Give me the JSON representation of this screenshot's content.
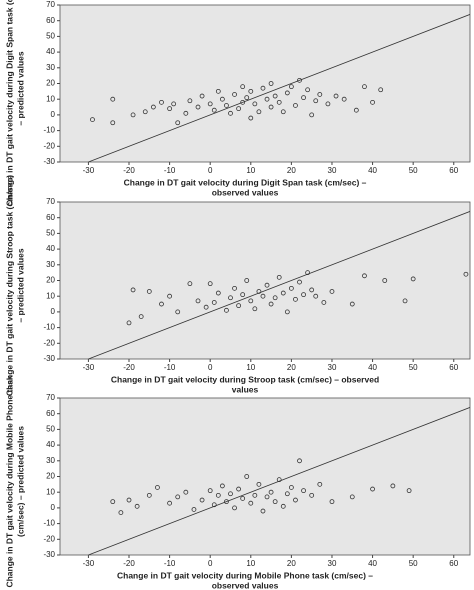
{
  "chart_data": [
    {
      "type": "scatter",
      "xlabel": [
        "Change in DT gait velocity during Digit Span task (cm/sec) –",
        "observed values"
      ],
      "ylabel": [
        "Change in DT gait velocity during Digit Span task (cm/sec)",
        "– predicted values"
      ],
      "xlim": [
        -37,
        64
      ],
      "ylim": [
        -30,
        70
      ],
      "xticks": [
        -30,
        -20,
        -10,
        0,
        10,
        20,
        30,
        40,
        50,
        60
      ],
      "yticks": [
        -30,
        -20,
        -10,
        0,
        10,
        20,
        30,
        40,
        50,
        60,
        70
      ],
      "reference_line": {
        "x": [
          -30,
          64
        ],
        "y": [
          -30,
          64
        ]
      },
      "x": [
        -29,
        -24,
        -24,
        -19,
        -16,
        -14,
        -12,
        -10,
        -9,
        -8,
        -6,
        -5,
        -3,
        -2,
        0,
        1,
        2,
        3,
        4,
        5,
        6,
        7,
        8,
        8,
        9,
        10,
        10,
        11,
        12,
        13,
        14,
        15,
        15,
        16,
        17,
        18,
        19,
        20,
        21,
        22,
        23,
        24,
        25,
        26,
        27,
        29,
        31,
        33,
        36,
        38,
        40,
        42
      ],
      "y": [
        -3,
        10,
        -5,
        0,
        2,
        5,
        8,
        4,
        7,
        -5,
        1,
        9,
        5,
        12,
        7,
        3,
        15,
        10,
        6,
        1,
        13,
        4,
        18,
        8,
        11,
        -2,
        15,
        7,
        2,
        17,
        10,
        5,
        20,
        12,
        8,
        2,
        14,
        18,
        6,
        22,
        11,
        16,
        0,
        9,
        13,
        7,
        12,
        10,
        3,
        18,
        8,
        16
      ]
    },
    {
      "type": "scatter",
      "xlabel": [
        "Change in DT gait velocity during Stroop task (cm/sec) – observed",
        "values"
      ],
      "ylabel": [
        "Change in DT gait velocity during Stroop task (cm/sec)",
        "– predicted values"
      ],
      "xlim": [
        -37,
        64
      ],
      "ylim": [
        -30,
        70
      ],
      "xticks": [
        -30,
        -20,
        -10,
        0,
        10,
        20,
        30,
        40,
        50,
        60
      ],
      "yticks": [
        -30,
        -20,
        -10,
        0,
        10,
        20,
        30,
        40,
        50,
        60,
        70
      ],
      "reference_line": {
        "x": [
          -30,
          64
        ],
        "y": [
          -30,
          64
        ]
      },
      "x": [
        -20,
        -19,
        -17,
        -15,
        -12,
        -10,
        -8,
        -5,
        -3,
        -1,
        0,
        1,
        2,
        4,
        5,
        6,
        7,
        8,
        9,
        10,
        11,
        12,
        13,
        14,
        15,
        16,
        17,
        18,
        19,
        20,
        21,
        22,
        23,
        24,
        25,
        26,
        28,
        30,
        35,
        38,
        43,
        48,
        50,
        63
      ],
      "y": [
        -7,
        14,
        -3,
        13,
        5,
        10,
        0,
        18,
        7,
        3,
        18,
        6,
        12,
        1,
        9,
        15,
        4,
        11,
        20,
        7,
        2,
        13,
        10,
        17,
        5,
        9,
        22,
        12,
        0,
        15,
        8,
        19,
        11,
        25,
        14,
        10,
        6,
        13,
        5,
        23,
        20,
        7,
        21,
        24
      ]
    },
    {
      "type": "scatter",
      "xlabel": [
        "Change in DT gait velocity during Mobile Phone task (cm/sec) –",
        "observed values"
      ],
      "ylabel": [
        "Change in DT gait velocity during Mobile Phone task",
        "(cm/sec) – predicted values"
      ],
      "xlim": [
        -37,
        64
      ],
      "ylim": [
        -30,
        70
      ],
      "xticks": [
        -30,
        -20,
        -10,
        0,
        10,
        20,
        30,
        40,
        50,
        60
      ],
      "yticks": [
        -30,
        -20,
        -10,
        0,
        10,
        20,
        30,
        40,
        50,
        60,
        70
      ],
      "reference_line": {
        "x": [
          -30,
          64
        ],
        "y": [
          -30,
          64
        ]
      },
      "x": [
        -24,
        -22,
        -20,
        -18,
        -15,
        -13,
        -10,
        -8,
        -6,
        -4,
        -2,
        0,
        1,
        2,
        3,
        4,
        5,
        6,
        7,
        8,
        9,
        10,
        11,
        12,
        13,
        14,
        15,
        16,
        17,
        18,
        19,
        20,
        21,
        22,
        23,
        25,
        27,
        30,
        35,
        40,
        45,
        49
      ],
      "y": [
        4,
        -3,
        5,
        1,
        8,
        13,
        3,
        7,
        10,
        -1,
        5,
        11,
        2,
        8,
        14,
        4,
        9,
        0,
        12,
        6,
        20,
        3,
        8,
        15,
        -2,
        7,
        10,
        4,
        18,
        1,
        9,
        13,
        5,
        30,
        11,
        8,
        15,
        4,
        7,
        12,
        14,
        11
      ]
    }
  ]
}
